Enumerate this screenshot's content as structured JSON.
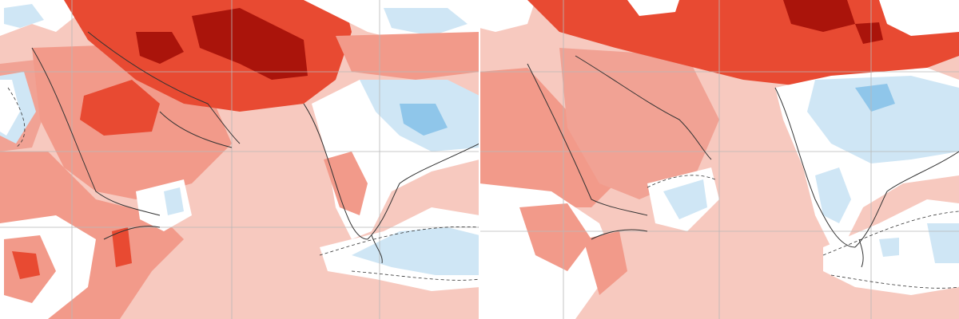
{
  "map": {
    "panels": [
      {
        "id": "left"
      },
      {
        "id": "right"
      }
    ],
    "colors": {
      "warm_1": "#f6c3b8",
      "warm_2": "#f29a8a",
      "warm_3": "#e84a32",
      "warm_4": "#aa140b",
      "neutral": "#ffffff",
      "cool_1": "#cfe6f5",
      "cool_2": "#8fc6ea",
      "graticule": "#b8b8b8",
      "boundary": "#333333"
    },
    "legend": []
  }
}
